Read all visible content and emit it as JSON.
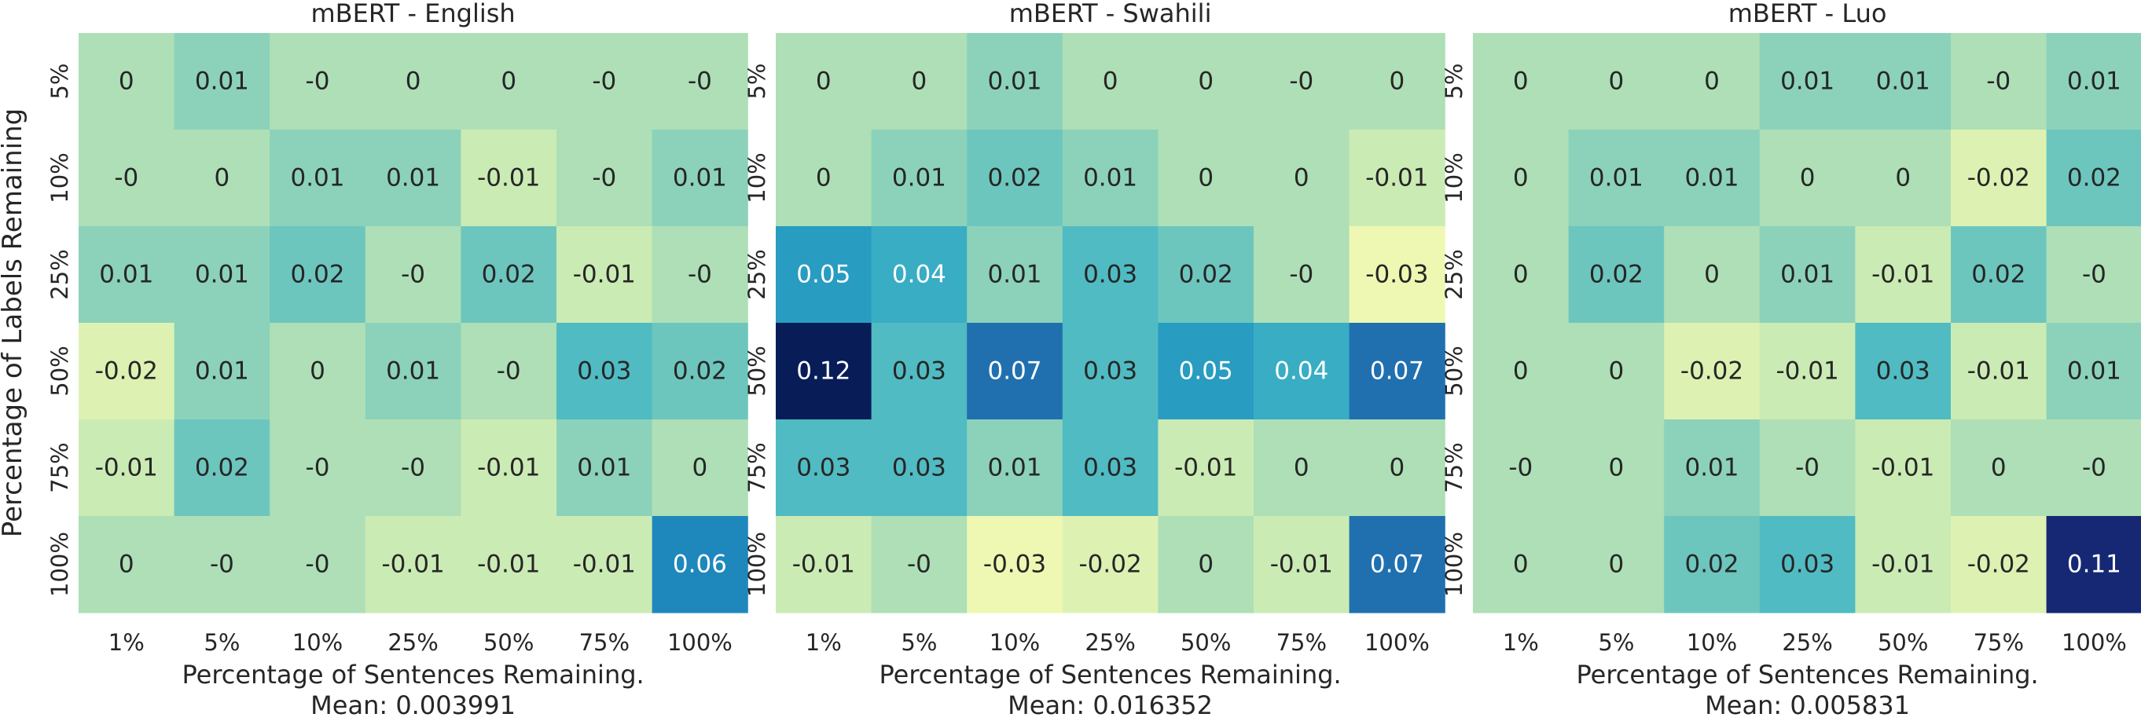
{
  "chart_data": [
    {
      "type": "heatmap",
      "title": "mBERT - English",
      "xlabel": "Percentage of Sentences Remaining.",
      "mean_label": "Mean: 0.003991",
      "ylabel": "Percentage of Labels Remaining",
      "x_categories": [
        "1%",
        "5%",
        "10%",
        "25%",
        "50%",
        "75%",
        "100%"
      ],
      "y_categories": [
        "5%",
        "10%",
        "25%",
        "50%",
        "75%",
        "100%"
      ],
      "values": [
        [
          0,
          0.01,
          0,
          0,
          0,
          0,
          0
        ],
        [
          0,
          0,
          0.01,
          0.01,
          -0.01,
          0,
          0.01
        ],
        [
          0.01,
          0.01,
          0.02,
          0,
          0.02,
          -0.01,
          0
        ],
        [
          -0.02,
          0.01,
          0,
          0.01,
          0,
          0.03,
          0.02
        ],
        [
          -0.01,
          0.02,
          0,
          0,
          -0.01,
          0.01,
          0
        ],
        [
          0,
          0,
          0,
          -0.01,
          -0.01,
          -0.01,
          0.06
        ]
      ],
      "labels": [
        [
          "0",
          "0.01",
          "-0",
          "0",
          "0",
          "-0",
          "-0"
        ],
        [
          "-0",
          "0",
          "0.01",
          "0.01",
          "-0.01",
          "-0",
          "0.01"
        ],
        [
          "0.01",
          "0.01",
          "0.02",
          "-0",
          "0.02",
          "-0.01",
          "-0"
        ],
        [
          "-0.02",
          "0.01",
          "0",
          "0.01",
          "-0",
          "0.03",
          "0.02"
        ],
        [
          "-0.01",
          "0.02",
          "-0",
          "-0",
          "-0.01",
          "0.01",
          "0"
        ],
        [
          "0",
          "-0",
          "-0",
          "-0.01",
          "-0.01",
          "-0.01",
          "0.06"
        ]
      ]
    },
    {
      "type": "heatmap",
      "title": "mBERT - Swahili",
      "xlabel": "Percentage of Sentences Remaining.",
      "mean_label": "Mean: 0.016352",
      "x_categories": [
        "1%",
        "5%",
        "10%",
        "25%",
        "50%",
        "75%",
        "100%"
      ],
      "y_categories": [
        "5%",
        "10%",
        "25%",
        "50%",
        "75%",
        "100%"
      ],
      "values": [
        [
          0,
          0,
          0.01,
          0,
          0,
          0,
          0
        ],
        [
          0,
          0.01,
          0.02,
          0.01,
          0,
          0,
          -0.01
        ],
        [
          0.05,
          0.04,
          0.01,
          0.03,
          0.02,
          0,
          -0.03
        ],
        [
          0.12,
          0.03,
          0.07,
          0.03,
          0.05,
          0.04,
          0.07
        ],
        [
          0.03,
          0.03,
          0.01,
          0.03,
          -0.01,
          0,
          0
        ],
        [
          -0.01,
          0,
          -0.03,
          -0.02,
          0,
          -0.01,
          0.07
        ]
      ],
      "labels": [
        [
          "0",
          "0",
          "0.01",
          "0",
          "0",
          "-0",
          "0"
        ],
        [
          "0",
          "0.01",
          "0.02",
          "0.01",
          "0",
          "0",
          "-0.01"
        ],
        [
          "0.05",
          "0.04",
          "0.01",
          "0.03",
          "0.02",
          "-0",
          "-0.03"
        ],
        [
          "0.12",
          "0.03",
          "0.07",
          "0.03",
          "0.05",
          "0.04",
          "0.07"
        ],
        [
          "0.03",
          "0.03",
          "0.01",
          "0.03",
          "-0.01",
          "0",
          "0"
        ],
        [
          "-0.01",
          "-0",
          "-0.03",
          "-0.02",
          "0",
          "-0.01",
          "0.07"
        ]
      ]
    },
    {
      "type": "heatmap",
      "title": "mBERT - Luo",
      "xlabel": "Percentage of Sentences Remaining.",
      "mean_label": "Mean: 0.005831",
      "x_categories": [
        "1%",
        "5%",
        "10%",
        "25%",
        "50%",
        "75%",
        "100%"
      ],
      "y_categories": [
        "5%",
        "10%",
        "25%",
        "50%",
        "75%",
        "100%"
      ],
      "values": [
        [
          0,
          0,
          0,
          0.01,
          0.01,
          0,
          0.01
        ],
        [
          0,
          0.01,
          0.01,
          0,
          0,
          -0.02,
          0.02
        ],
        [
          0,
          0.02,
          0,
          0.01,
          -0.01,
          0.02,
          0
        ],
        [
          0,
          0,
          -0.02,
          -0.01,
          0.03,
          -0.01,
          0.01
        ],
        [
          0,
          0,
          0.01,
          0,
          -0.01,
          0,
          0
        ],
        [
          0,
          0,
          0.02,
          0.03,
          -0.01,
          -0.02,
          0.11
        ]
      ],
      "labels": [
        [
          "0",
          "0",
          "0",
          "0.01",
          "0.01",
          "-0",
          "0.01"
        ],
        [
          "0",
          "0.01",
          "0.01",
          "0",
          "0",
          "-0.02",
          "0.02"
        ],
        [
          "0",
          "0.02",
          "0",
          "0.01",
          "-0.01",
          "0.02",
          "-0"
        ],
        [
          "0",
          "0",
          "-0.02",
          "-0.01",
          "0.03",
          "-0.01",
          "0.01"
        ],
        [
          "-0",
          "0",
          "0.01",
          "-0",
          "-0.01",
          "0",
          "-0"
        ],
        [
          "0",
          "0",
          "0.02",
          "0.03",
          "-0.01",
          "-0.02",
          "0.11"
        ]
      ]
    }
  ],
  "colormap": {
    "name": "YlGnBu",
    "value_range": [
      -0.05,
      0.12
    ],
    "stops": [
      "#ffffd9",
      "#edf8b1",
      "#c7e9b4",
      "#7fcdbb",
      "#41b6c4",
      "#1d91c0",
      "#225ea8",
      "#253494",
      "#081d58"
    ],
    "light_text": "#ffffff",
    "dark_text": "#262626"
  }
}
